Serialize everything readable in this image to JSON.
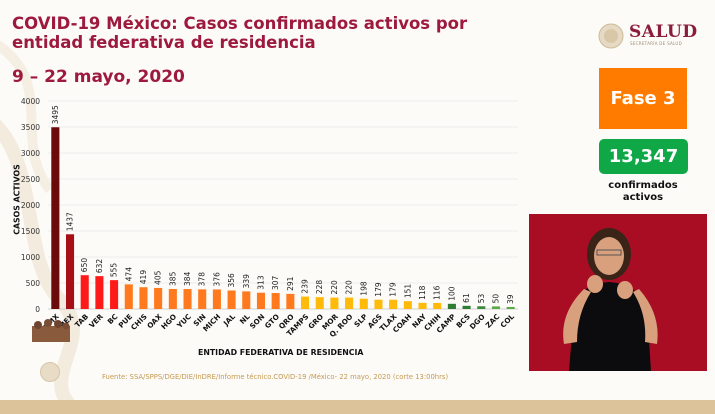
{
  "header": {
    "title": "COVID-19 México: Casos confirmados activos por entidad federativa de residencia",
    "subtitle": "9 – 22 mayo, 2020"
  },
  "logo": {
    "name": "SALUD",
    "tagline": "SECRETARÍA DE SALUD"
  },
  "phase": {
    "label": "Fase 3",
    "color": "#ff7b00"
  },
  "total": {
    "value": "13,347",
    "label": "confirmados activos",
    "color": "#10a846"
  },
  "source": "Fuente: SSA/SPPS/DGE/DIE/InDRE/Informe técnico.COVID-19 /México- 22 mayo, 2020 (corte 13:00hrs)",
  "chart_data": {
    "type": "bar",
    "title": "COVID-19 México: Casos confirmados activos por entidad federativa de residencia",
    "xlabel": "ENTIDAD FEDERATIVA DE  RESIDENCIA",
    "ylabel": "CASOS ACTIVOS",
    "ylim": [
      0,
      4000
    ],
    "yticks": [
      0,
      500,
      1000,
      1500,
      2000,
      2500,
      3000,
      3500,
      4000
    ],
    "grid": true,
    "categories": [
      "CDMX",
      "MEX",
      "TAB",
      "VER",
      "BC",
      "PUE",
      "CHIS",
      "OAX",
      "HGO",
      "YUC",
      "SIN",
      "MICH",
      "JAL",
      "NL",
      "SON",
      "GTO",
      "QRO",
      "TAMPS",
      "GRO",
      "MOR",
      "Q. ROO",
      "SLP",
      "AGS",
      "TLAX",
      "COAH",
      "NAY",
      "CHIH",
      "CAMP",
      "BCS",
      "DGO",
      "ZAC",
      "COL"
    ],
    "values": [
      3495,
      1437,
      650,
      632,
      555,
      474,
      419,
      405,
      385,
      384,
      378,
      376,
      356,
      339,
      313,
      307,
      291,
      239,
      228,
      220,
      220,
      198,
      179,
      179,
      151,
      118,
      116,
      100,
      61,
      53,
      50,
      39
    ],
    "colors": [
      "#6b0a0a",
      "#a50f15",
      "#ff1a1a",
      "#ff1a1a",
      "#ff1a1a",
      "#ff7a1f",
      "#ff7a1f",
      "#ff7a1f",
      "#ff7a1f",
      "#ff7a1f",
      "#ff7a1f",
      "#ff7a1f",
      "#ff7a1f",
      "#ff7a1f",
      "#ff7a1f",
      "#ff7a1f",
      "#ff7a1f",
      "#ffba0a",
      "#ffba0a",
      "#ffba0a",
      "#ffba0a",
      "#ffba0a",
      "#ffba0a",
      "#ffba0a",
      "#ffba0a",
      "#ffba0a",
      "#ffba0a",
      "#2e7d32",
      "#2e7d32",
      "#3d8b3d",
      "#5aaa46",
      "#5aaa46"
    ]
  }
}
